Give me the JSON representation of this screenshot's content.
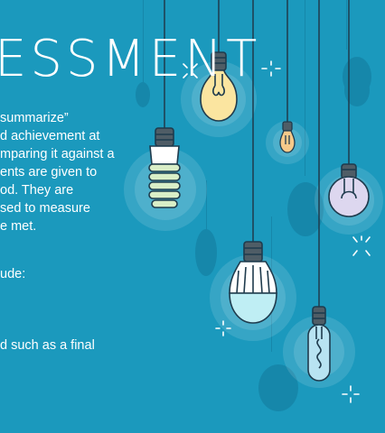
{
  "slide": {
    "title": "ESSMENT",
    "paragraph_lines": [
      "summarize”",
      "d achievement at",
      "mparing it against a",
      "ents are given to",
      "od. They are",
      "sed to measure",
      "e met."
    ],
    "line_include": "ude:",
    "line_final": "d such as a final"
  },
  "colors": {
    "background": "#1b99bd",
    "bulb_yellow": "#fbe5a0",
    "bulb_green": "#d9eec7",
    "bulb_lavender": "#ddd7ef",
    "bulb_cyan": "#bfeef4",
    "bulb_slim": "#b8e3f2",
    "outline": "#1f3b4d",
    "shadow": "#1687aa"
  },
  "icons": [
    "light-bulb-icon",
    "sparkle-icon"
  ]
}
